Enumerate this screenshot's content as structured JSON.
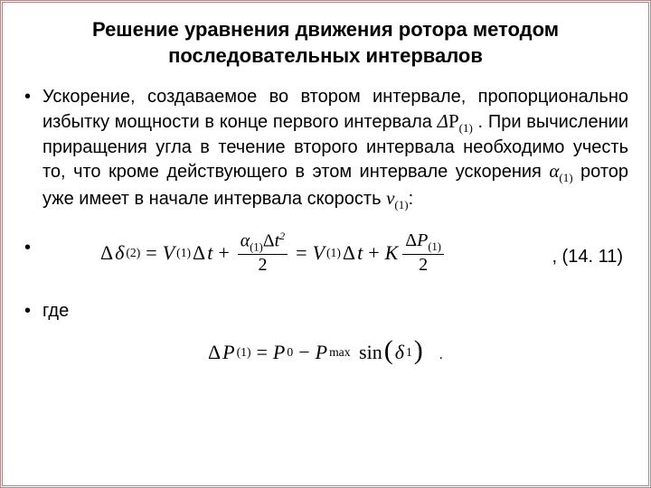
{
  "title": "Решение уравнения движения ротора методом последовательных интервалов",
  "body": {
    "para1_a": "Ускорение, создаваемое во втором интервале, пропорционально избытку мощности в конце первого интервала ",
    "dp1": "ΔP(1)",
    "para1_b": " . При вычислении приращения угла в течение второго интервала необходимо учесть то, что кроме действующего в этом интервале ускорения  ",
    "alpha1": "α(1)",
    "para1_c": " ротор уже имеет в начале интервала скорость ",
    "v1": "v(1)",
    "para1_d": ":"
  },
  "eq1": {
    "lhs": "Δδ",
    "lhs_sub": "(2)",
    "eq": "=",
    "V": "V",
    "V_sub": "(1)",
    "dt": "Δt",
    "plus": "+",
    "alpha": "α",
    "alpha_sub": "(1)",
    "dt2_sup": "2",
    "two": "2",
    "K": "K",
    "dP": "ΔP",
    "dP_sub": "(1)"
  },
  "eq1_label": ", (14. 11)",
  "gde": "где",
  "eq2": {
    "dP": "ΔP",
    "dP_sub": "(1)",
    "eq": "=",
    "P0": "P",
    "zero": "0",
    "minus": "−",
    "Pmax": "P",
    "max": "max",
    "sin": "sin",
    "delta": "δ",
    "one": "1"
  },
  "dot": "."
}
